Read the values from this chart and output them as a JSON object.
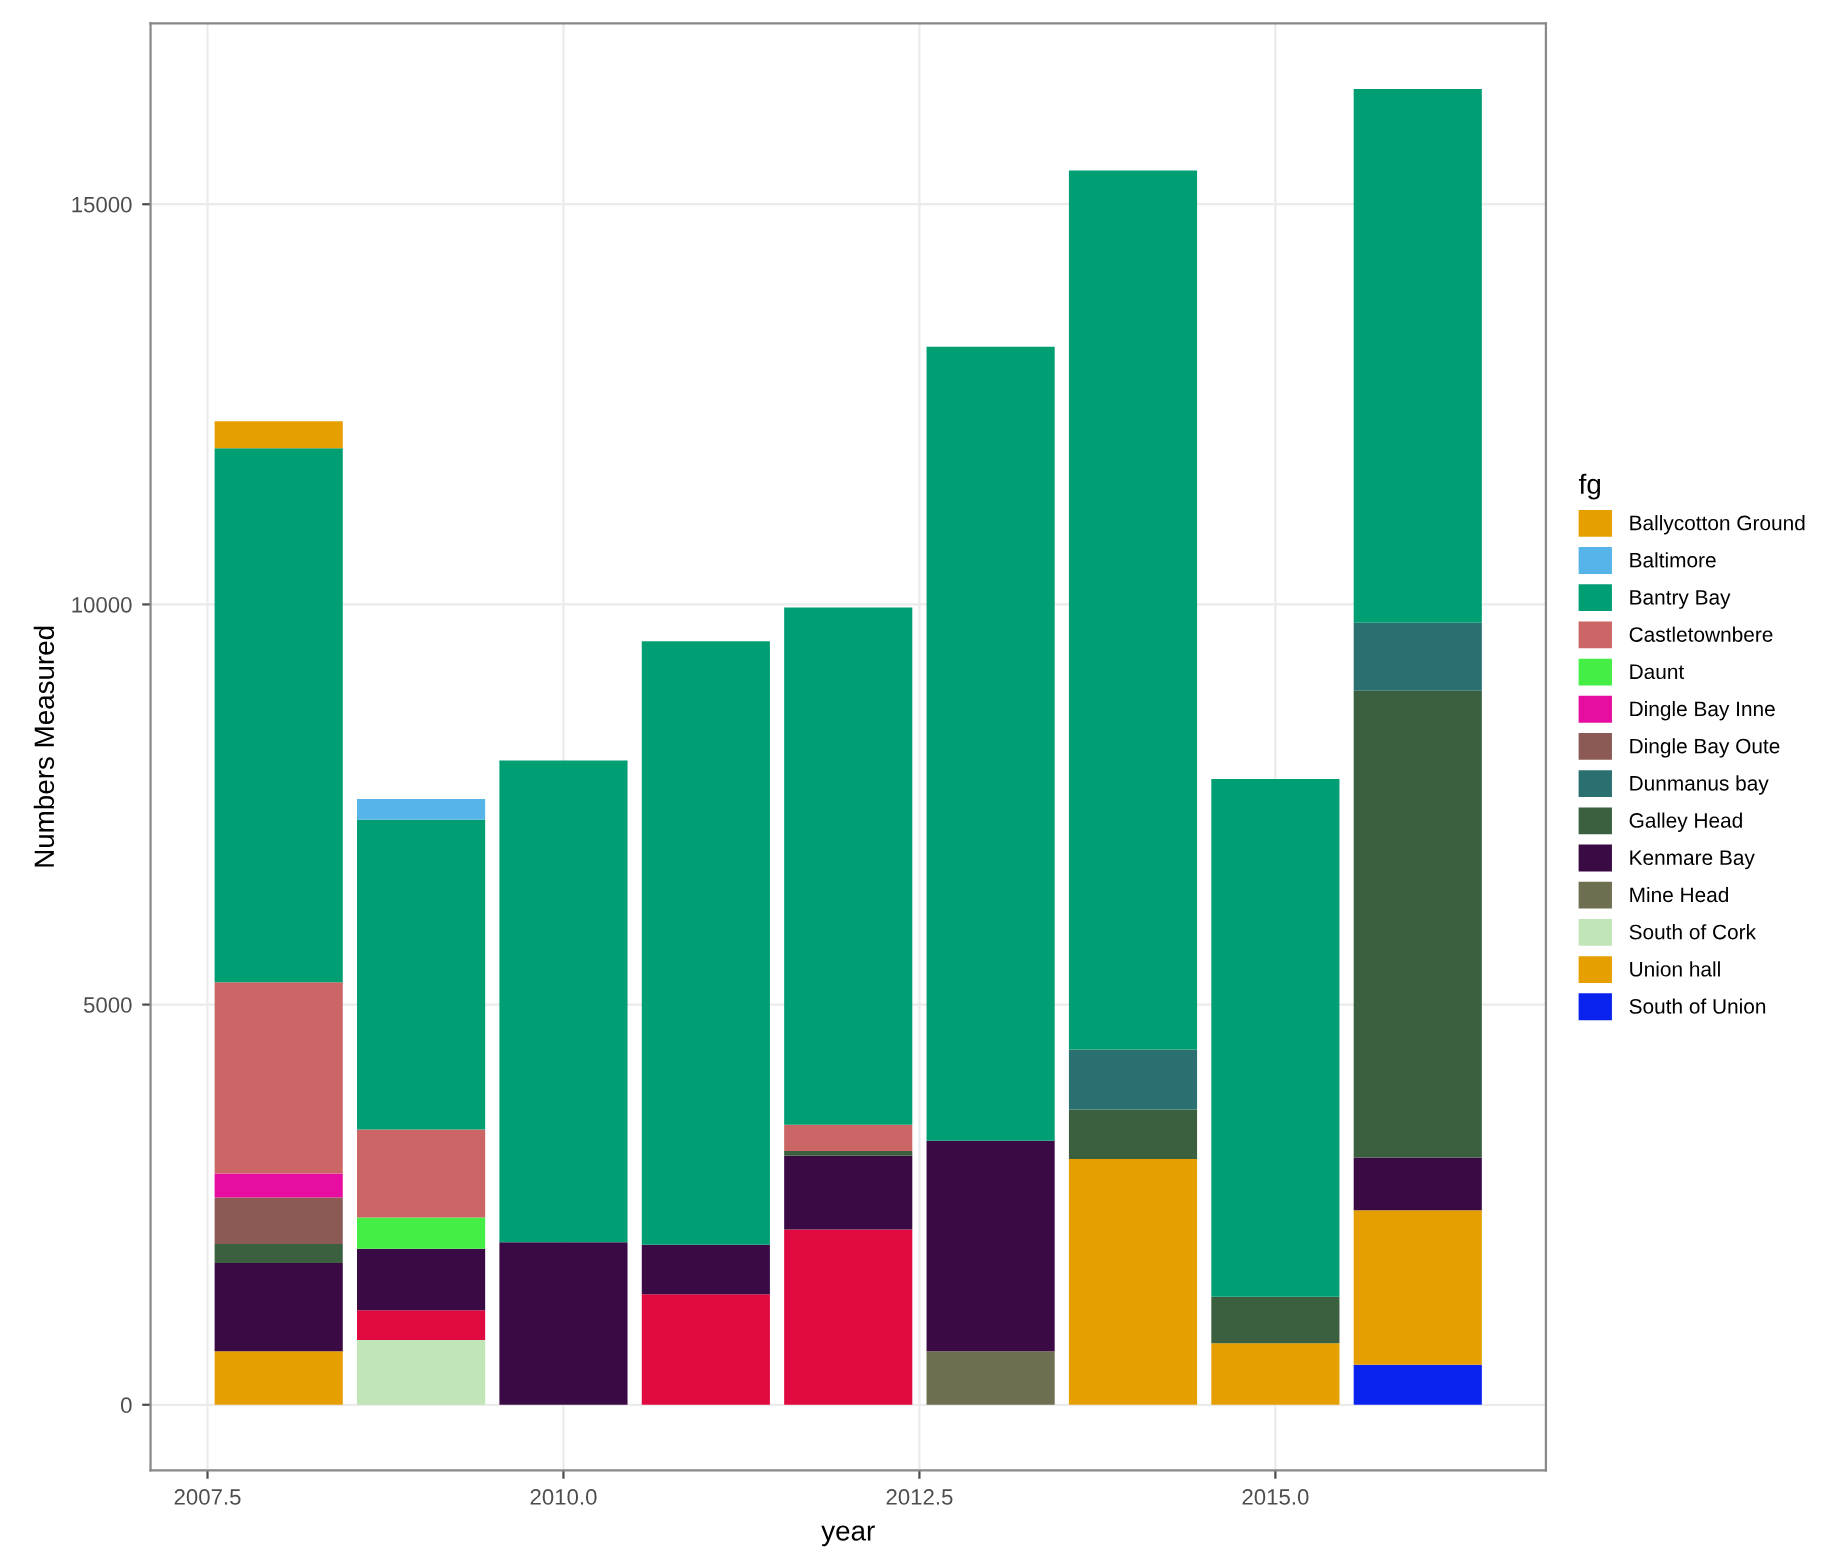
{
  "chart_data": {
    "type": "bar",
    "stacked": true,
    "xlabel": "year",
    "ylabel": "Numbers Measured",
    "legend_title": "fg",
    "legend": "right",
    "grid": true,
    "x": [
      2008,
      2009,
      2010,
      2011,
      2012,
      2013,
      2014,
      2015,
      2016
    ],
    "xlim": [
      2007.1,
      2016.9
    ],
    "xticks": [
      2007.5,
      {
        "value": 2010,
        "label": "2010.0"
      },
      2012.5,
      {
        "value": 2015,
        "label": "2015.0"
      }
    ],
    "ylim": [
      -820,
      17260
    ],
    "yticks": [
      0,
      5000,
      10000,
      15000
    ],
    "series": [
      {
        "name": "South of Union",
        "color": "#0a22ee",
        "values": [
          null,
          null,
          null,
          null,
          null,
          null,
          null,
          null,
          500
        ]
      },
      {
        "name": "Union hall",
        "color": "#e69f00",
        "values": [
          670,
          null,
          null,
          null,
          null,
          null,
          3070,
          770,
          1930
        ]
      },
      {
        "name": "South of Cork",
        "color": "#c2e5b8",
        "values": [
          null,
          810,
          null,
          null,
          null,
          null,
          null,
          null,
          null
        ]
      },
      {
        "name": "Mine Head",
        "color": "#6e6e50",
        "values": [
          null,
          null,
          null,
          null,
          null,
          670,
          null,
          null,
          null
        ]
      },
      {
        "color": "#e10a40",
        "values": [
          null,
          370,
          null,
          1380,
          2190,
          null,
          null,
          null,
          null
        ]
      },
      {
        "name": "Kenmare Bay",
        "color": "#3a0a45",
        "values": [
          1100,
          770,
          2030,
          620,
          920,
          2630,
          null,
          null,
          660
        ]
      },
      {
        "name": "Galley Head",
        "color": "#3a6040",
        "values": [
          240,
          null,
          null,
          null,
          60,
          null,
          620,
          580,
          5830
        ]
      },
      {
        "name": "Dunmanus bay",
        "color": "#2a7070",
        "values": [
          null,
          null,
          null,
          null,
          null,
          null,
          750,
          null,
          850
        ]
      },
      {
        "name": "Dingle Bay Oute",
        "color": "#8b5a55",
        "values": [
          580,
          null,
          null,
          null,
          null,
          null,
          null,
          null,
          null
        ]
      },
      {
        "name": "Dingle Bay Inne",
        "color": "#e60da0",
        "values": [
          300,
          null,
          null,
          null,
          null,
          null,
          null,
          null,
          null
        ]
      },
      {
        "name": "Daunt",
        "color": "#44ee44",
        "values": [
          null,
          390,
          null,
          null,
          null,
          null,
          null,
          null,
          null
        ]
      },
      {
        "name": "Castletownbere",
        "color": "#cc6666",
        "values": [
          2390,
          1100,
          null,
          null,
          330,
          null,
          null,
          null,
          null
        ]
      },
      {
        "name": "Bantry Bay",
        "color": "#009e73",
        "values": [
          6670,
          3870,
          6020,
          7540,
          6460,
          9920,
          10980,
          6470,
          6670
        ]
      },
      {
        "name": "Baltimore",
        "color": "#56b4e9",
        "values": [
          null,
          260,
          null,
          null,
          null,
          null,
          null,
          null,
          null
        ]
      },
      {
        "name": "Ballycotton Ground",
        "color": "#e69f00",
        "values": [
          340,
          null,
          null,
          null,
          null,
          null,
          null,
          null,
          null
        ]
      }
    ]
  }
}
